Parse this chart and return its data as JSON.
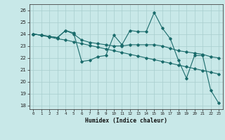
{
  "x": [
    0,
    1,
    2,
    3,
    4,
    5,
    6,
    7,
    8,
    9,
    10,
    11,
    12,
    13,
    14,
    15,
    16,
    17,
    18,
    19,
    20,
    21,
    22,
    23
  ],
  "line1": [
    24.0,
    23.9,
    23.8,
    23.7,
    24.3,
    24.1,
    21.7,
    21.8,
    22.1,
    22.2,
    23.9,
    23.1,
    24.3,
    24.2,
    24.2,
    25.8,
    24.5,
    23.6,
    21.8,
    20.3,
    22.2,
    22.2,
    19.3,
    18.2
  ],
  "line2": [
    24.0,
    23.9,
    23.8,
    23.7,
    24.3,
    24.0,
    23.5,
    23.3,
    23.2,
    23.1,
    23.0,
    23.0,
    23.1,
    23.1,
    23.1,
    23.1,
    23.0,
    22.8,
    22.6,
    22.5,
    22.4,
    22.3,
    22.1,
    22.0
  ],
  "line3": [
    24.0,
    23.9,
    23.75,
    23.6,
    23.5,
    23.35,
    23.2,
    23.05,
    22.9,
    22.75,
    22.6,
    22.45,
    22.3,
    22.15,
    22.0,
    21.85,
    21.7,
    21.55,
    21.4,
    21.25,
    21.1,
    20.95,
    20.8,
    20.65
  ],
  "line_color": "#1a6b6b",
  "bg_color": "#c8e8e8",
  "grid_color": "#a8cece",
  "xlabel": "Humidex (Indice chaleur)",
  "ylabel_ticks": [
    18,
    19,
    20,
    21,
    22,
    23,
    24,
    25,
    26
  ],
  "ylim": [
    17.7,
    26.5
  ],
  "xlim": [
    -0.5,
    23.5
  ]
}
